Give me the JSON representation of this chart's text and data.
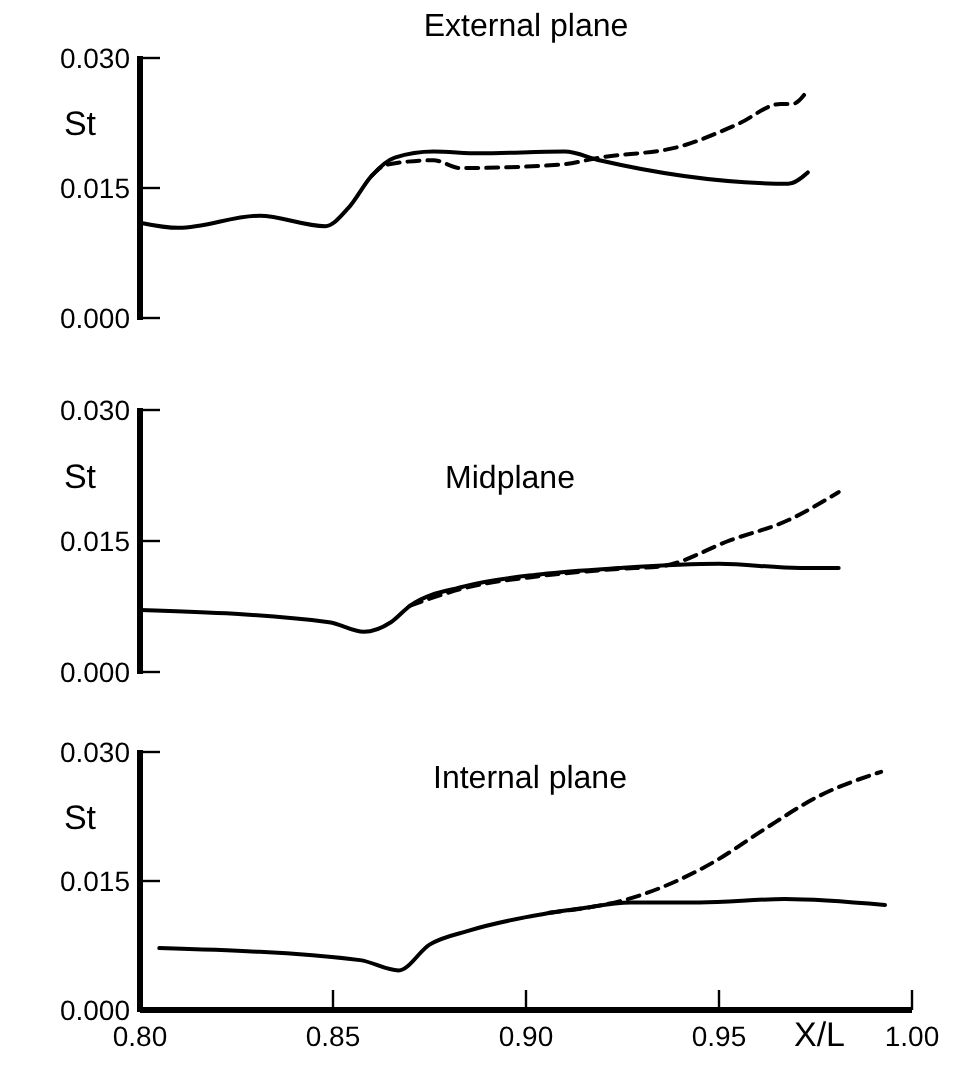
{
  "chart_data": [
    {
      "type": "line",
      "title": "External plane",
      "ylabel": "St",
      "xlim": [
        0.8,
        1.0
      ],
      "ylim": [
        0,
        0.03
      ],
      "yticks": [
        {
          "value": 0,
          "label": "0.000"
        },
        {
          "value": 0.015,
          "label": "0.015"
        },
        {
          "value": 0.03,
          "label": "0.030"
        }
      ],
      "tick_labels": "y",
      "grid": false,
      "series": [
        {
          "color": "#000000",
          "line_style": "solid",
          "x": [
            0.8,
            0.81,
            0.831,
            0.848,
            0.854,
            0.86,
            0.866,
            0.876,
            0.888,
            0.91,
            0.919,
            0.968,
            0.973
          ],
          "values": [
            0.011,
            0.0104,
            0.0118,
            0.0106,
            0.0127,
            0.0164,
            0.0185,
            0.0192,
            0.019,
            0.0192,
            0.0182,
            0.0155,
            0.0168
          ]
        },
        {
          "color": "#000000",
          "line_style": "dashed",
          "x": [
            0.86,
            0.864,
            0.876,
            0.883,
            0.909,
            0.919,
            0.94,
            0.955,
            0.966,
            0.969,
            0.973
          ],
          "values": [
            0.0164,
            0.0177,
            0.0182,
            0.0173,
            0.0177,
            0.0185,
            0.0198,
            0.0224,
            0.0247,
            0.0247,
            0.0263
          ]
        }
      ]
    },
    {
      "type": "line",
      "title": "Midplane",
      "ylabel": "St",
      "xlim": [
        0.8,
        1.0
      ],
      "ylim": [
        0,
        0.03
      ],
      "yticks": [
        {
          "value": 0,
          "label": "0.000"
        },
        {
          "value": 0.015,
          "label": "0.015"
        },
        {
          "value": 0.03,
          "label": "0.030"
        }
      ],
      "tick_labels": "y",
      "grid": false,
      "series": [
        {
          "color": "#000000",
          "line_style": "solid",
          "x": [
            0.8,
            0.849,
            0.858,
            0.865,
            0.87,
            0.884,
            0.904,
            0.924,
            0.95,
            0.971,
            0.981
          ],
          "values": [
            0.0071,
            0.0057,
            0.0046,
            0.0057,
            0.0076,
            0.0098,
            0.0112,
            0.0119,
            0.0124,
            0.0119,
            0.0119
          ]
        },
        {
          "color": "#000000",
          "line_style": "dashed",
          "x": [
            0.87,
            0.884,
            0.904,
            0.924,
            0.935,
            0.953,
            0.968,
            0.981
          ],
          "values": [
            0.0076,
            0.0096,
            0.011,
            0.0118,
            0.0121,
            0.0151,
            0.0174,
            0.0206
          ]
        }
      ]
    },
    {
      "type": "line",
      "title": "Internal plane",
      "ylabel": "St",
      "xlabel": "X/L",
      "xlim": [
        0.8,
        1.0
      ],
      "xticks": [
        {
          "value": 0.8,
          "label": "0.80"
        },
        {
          "value": 0.85,
          "label": "0.85"
        },
        {
          "value": 0.9,
          "label": "0.90"
        },
        {
          "value": 0.95,
          "label": "0.95"
        },
        {
          "value": 1.0,
          "label": "1.00"
        }
      ],
      "ylim": [
        0,
        0.03
      ],
      "yticks": [
        {
          "value": 0,
          "label": "0.000"
        },
        {
          "value": 0.015,
          "label": "0.015"
        },
        {
          "value": 0.03,
          "label": "0.030"
        }
      ],
      "grid": false,
      "series": [
        {
          "color": "#000000",
          "line_style": "solid",
          "x": [
            0.805,
            0.857,
            0.867,
            0.875,
            0.885,
            0.9,
            0.914,
            0.927,
            0.945,
            0.967,
            0.993
          ],
          "values": [
            0.0072,
            0.0058,
            0.0046,
            0.0076,
            0.0092,
            0.0108,
            0.0118,
            0.0125,
            0.0125,
            0.0129,
            0.0122
          ]
        },
        {
          "color": "#000000",
          "line_style": "dashed",
          "x": [
            0.906,
            0.93,
            0.949,
            0.961,
            0.976,
            0.992
          ],
          "values": [
            0.0113,
            0.0134,
            0.0173,
            0.0208,
            0.0249,
            0.0277
          ]
        }
      ]
    }
  ]
}
